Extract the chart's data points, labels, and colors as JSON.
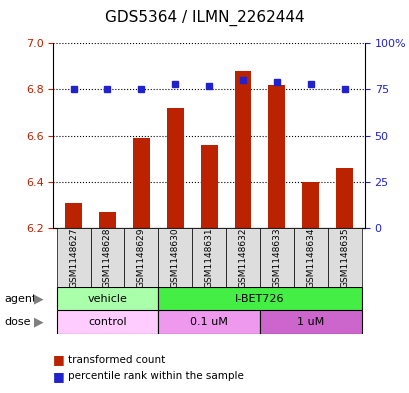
{
  "title": "GDS5364 / ILMN_2262444",
  "samples": [
    "GSM1148627",
    "GSM1148628",
    "GSM1148629",
    "GSM1148630",
    "GSM1148631",
    "GSM1148632",
    "GSM1148633",
    "GSM1148634",
    "GSM1148635"
  ],
  "red_values": [
    6.31,
    6.27,
    6.59,
    6.72,
    6.56,
    6.88,
    6.82,
    6.4,
    6.46
  ],
  "blue_values": [
    75,
    75,
    75,
    78,
    77,
    80,
    79,
    78,
    75
  ],
  "ymin": 6.2,
  "ymax": 7.0,
  "yticks": [
    6.2,
    6.4,
    6.6,
    6.8,
    7.0
  ],
  "y2min": 0,
  "y2max": 100,
  "y2ticks": [
    0,
    25,
    50,
    75,
    100
  ],
  "y2ticklabels": [
    "0",
    "25",
    "50",
    "75",
    "100%"
  ],
  "bar_color": "#bb2200",
  "dot_color": "#2222cc",
  "agent_groups": [
    {
      "label": "vehicle",
      "start": 0,
      "end": 3,
      "color": "#aaffaa"
    },
    {
      "label": "I-BET726",
      "start": 3,
      "end": 9,
      "color": "#44ee44"
    }
  ],
  "dose_groups": [
    {
      "label": "control",
      "start": 0,
      "end": 3,
      "color": "#ffccff"
    },
    {
      "label": "0.1 uM",
      "start": 3,
      "end": 6,
      "color": "#ee99ee"
    },
    {
      "label": "1 uM",
      "start": 6,
      "end": 9,
      "color": "#cc66cc"
    }
  ],
  "legend_items": [
    {
      "color": "#bb2200",
      "label": "transformed count"
    },
    {
      "color": "#2222cc",
      "label": "percentile rank within the sample"
    }
  ],
  "bar_bottom": 6.2
}
